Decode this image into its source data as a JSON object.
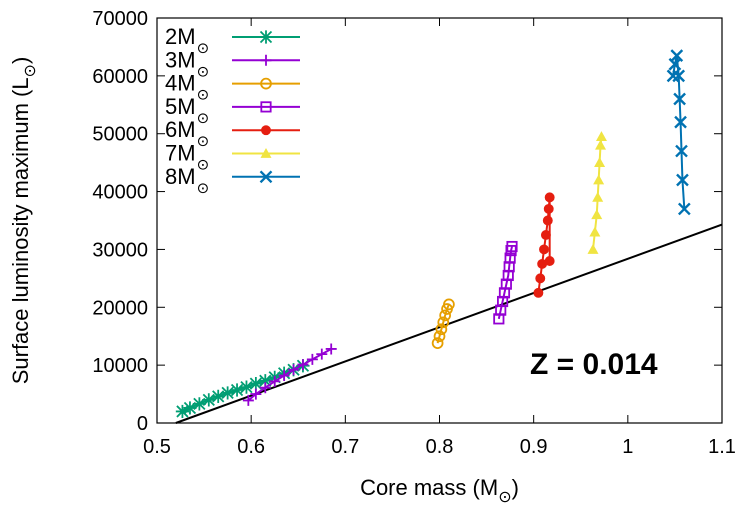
{
  "chart_data": {
    "type": "scatter",
    "xlabel": "Core mass (M",
    "xlabel_suffix": ")",
    "ylabel": "Surface luminosity maximum (L",
    "ylabel_suffix": ")",
    "xlim": [
      0.5,
      1.1
    ],
    "ylim": [
      0,
      70000
    ],
    "xticks": [
      0.5,
      0.6,
      0.7,
      0.8,
      0.9,
      1,
      1.1
    ],
    "xtick_labels": [
      "0.5",
      "0.6",
      "0.7",
      "0.8",
      "0.9",
      "1",
      "1.1"
    ],
    "yticks": [
      0,
      10000,
      20000,
      30000,
      40000,
      50000,
      60000,
      70000
    ],
    "ytick_labels": [
      "0",
      "10000",
      "20000",
      "30000",
      "40000",
      "50000",
      "60000",
      "70000"
    ],
    "grid": false,
    "legend_position": "top-left",
    "annotation": "Z = 0.014",
    "reference_line": {
      "x": [
        0.52,
        1.1
      ],
      "y": [
        0,
        34300
      ],
      "color": "#000000"
    },
    "series": [
      {
        "name": "2M",
        "name_suffix": "⊙",
        "marker": "star",
        "color": "#009e73",
        "x": [
          0.527,
          0.535,
          0.545,
          0.555,
          0.565,
          0.575,
          0.585,
          0.595,
          0.605,
          0.615,
          0.625,
          0.635,
          0.645,
          0.655
        ],
        "y": [
          2000,
          2600,
          3300,
          4000,
          4600,
          5200,
          5700,
          6200,
          6800,
          7300,
          7900,
          8600,
          9200,
          9900
        ]
      },
      {
        "name": "3M",
        "name_suffix": "⊙",
        "marker": "plus",
        "color": "#9400d3",
        "x": [
          0.597,
          0.605,
          0.615,
          0.625,
          0.635,
          0.645,
          0.655,
          0.665,
          0.675,
          0.685
        ],
        "y": [
          3900,
          5000,
          6100,
          7200,
          8200,
          9200,
          10100,
          11000,
          11900,
          12800
        ]
      },
      {
        "name": "4M",
        "name_suffix": "⊙",
        "marker": "circle",
        "color": "#e69f00",
        "x": [
          0.798,
          0.8,
          0.802,
          0.804,
          0.806,
          0.808,
          0.81
        ],
        "y": [
          13800,
          15000,
          16200,
          17400,
          18600,
          19700,
          20500
        ]
      },
      {
        "name": "5M",
        "name_suffix": "⊙",
        "marker": "square",
        "color": "#9400d3",
        "x": [
          0.863,
          0.865,
          0.867,
          0.869,
          0.871,
          0.873,
          0.874,
          0.875,
          0.876,
          0.877
        ],
        "y": [
          18000,
          19500,
          21000,
          22500,
          24000,
          25500,
          27000,
          28500,
          29800,
          30500
        ]
      },
      {
        "name": "6M",
        "name_suffix": "⊙",
        "marker": "filled-circle",
        "color": "#e51e10",
        "x": [
          0.905,
          0.907,
          0.909,
          0.911,
          0.913,
          0.915,
          0.916,
          0.917,
          0.917
        ],
        "y": [
          22500,
          25000,
          27500,
          30000,
          32500,
          35000,
          37000,
          39000,
          28000
        ]
      },
      {
        "name": "7M",
        "name_suffix": "⊙",
        "marker": "triangle",
        "color": "#f0e442",
        "x": [
          0.963,
          0.965,
          0.967,
          0.968,
          0.969,
          0.97,
          0.971,
          0.972
        ],
        "y": [
          30000,
          33000,
          36000,
          39000,
          42000,
          45000,
          48000,
          49500
        ]
      },
      {
        "name": "8M",
        "name_suffix": "⊙",
        "marker": "cross",
        "color": "#0072b2",
        "x": [
          1.048,
          1.05,
          1.052,
          1.054,
          1.055,
          1.056,
          1.057,
          1.058,
          1.06
        ],
        "y": [
          60000,
          62000,
          63500,
          60000,
          56000,
          52000,
          47000,
          42000,
          37000
        ]
      }
    ]
  }
}
